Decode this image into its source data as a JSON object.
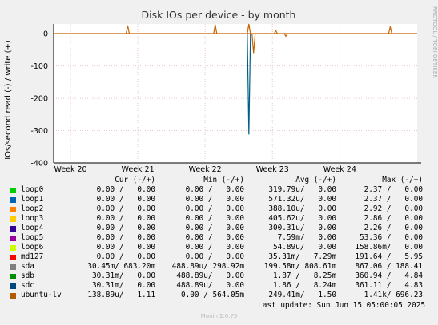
{
  "chart_data": {
    "type": "line",
    "title": "Disk IOs per device - by month",
    "ylabel": "IOs/second read (-) / write (+)",
    "ylim": [
      -400,
      30
    ],
    "yticks": [
      0,
      -100,
      -200,
      -300,
      -400
    ],
    "xticks": [
      "Week 20",
      "Week 21",
      "Week 22",
      "Week 23",
      "Week 24"
    ],
    "grid": true,
    "baseline_color": "#c86400",
    "spikes": [
      {
        "week": 20.85,
        "value": 25
      },
      {
        "week": 22.15,
        "value": 28
      },
      {
        "week": 22.65,
        "value": 30
      },
      {
        "week": 23.05,
        "value": 10
      },
      {
        "week": 24.75,
        "value": 22
      },
      {
        "week": 22.65,
        "value": -312,
        "color": "#005f86"
      },
      {
        "week": 22.72,
        "value": -60
      },
      {
        "week": 23.2,
        "value": -8
      }
    ],
    "x_start_week": 19.75,
    "x_end_week": 25.15,
    "side_label": "RRDTOOL / TOBI OETIKER",
    "legend_headers": {
      "cur": "Cur (-/+)",
      "min": "Min (-/+)",
      "avg": "Avg (-/+)",
      "max": "Max (-/+)"
    },
    "series": [
      {
        "name": "loop0",
        "color": "#00cc00",
        "cur": "0.00 /   0.00",
        "min": "0.00 /   0.00",
        "avg": "319.79u/   0.00",
        "max": "2.37 /   0.00"
      },
      {
        "name": "loop1",
        "color": "#0066b3",
        "cur": "0.00 /   0.00",
        "min": "0.00 /   0.00",
        "avg": "571.32u/   0.00",
        "max": "2.37 /   0.00"
      },
      {
        "name": "loop2",
        "color": "#ff8000",
        "cur": "0.00 /   0.00",
        "min": "0.00 /   0.00",
        "avg": "388.10u/   0.00",
        "max": "2.92 /   0.00"
      },
      {
        "name": "loop3",
        "color": "#ffcc00",
        "cur": "0.00 /   0.00",
        "min": "0.00 /   0.00",
        "avg": "405.62u/   0.00",
        "max": "2.86 /   0.00"
      },
      {
        "name": "loop4",
        "color": "#330099",
        "cur": "0.00 /   0.00",
        "min": "0.00 /   0.00",
        "avg": "300.31u/   0.00",
        "max": "2.26 /   0.00"
      },
      {
        "name": "loop5",
        "color": "#990099",
        "cur": "0.00 /   0.00",
        "min": "0.00 /   0.00",
        "avg": "7.59m/   0.00",
        "max": "53.36 /   0.00"
      },
      {
        "name": "loop6",
        "color": "#ccff00",
        "cur": "0.00 /   0.00",
        "min": "0.00 /   0.00",
        "avg": "54.89u/   0.00",
        "max": "158.86m/   0.00"
      },
      {
        "name": "md127",
        "color": "#ff0000",
        "cur": "0.00 /   0.00",
        "min": "0.00 /   0.00",
        "avg": "35.31m/   7.29m",
        "max": "191.64 /   5.95"
      },
      {
        "name": "sda",
        "color": "#808080",
        "cur": "30.45m/ 683.20m",
        "min": "488.89u/ 298.92m",
        "avg": "199.58m/ 808.61m",
        "max": "867.06 / 188.41"
      },
      {
        "name": "sdb",
        "color": "#008f00",
        "cur": "30.31m/   0.00",
        "min": "488.89u/   0.00",
        "avg": "1.87 /   8.25m",
        "max": "360.94 /   4.84"
      },
      {
        "name": "sdc",
        "color": "#00487d",
        "cur": "30.31m/   0.00",
        "min": "488.89u/   0.00",
        "avg": "1.86 /   8.24m",
        "max": "361.11 /   4.83"
      },
      {
        "name": "ubuntu-lv",
        "color": "#b35a00",
        "cur": "138.89u/   1.11",
        "min": "0.00 / 564.05m",
        "avg": "249.41m/   1.50",
        "max": "1.41k/ 696.23"
      }
    ]
  },
  "footer": {
    "last_update": "Last update: Sun Jun 15 05:00:05 2025",
    "version": "Munin 2.0.75"
  }
}
